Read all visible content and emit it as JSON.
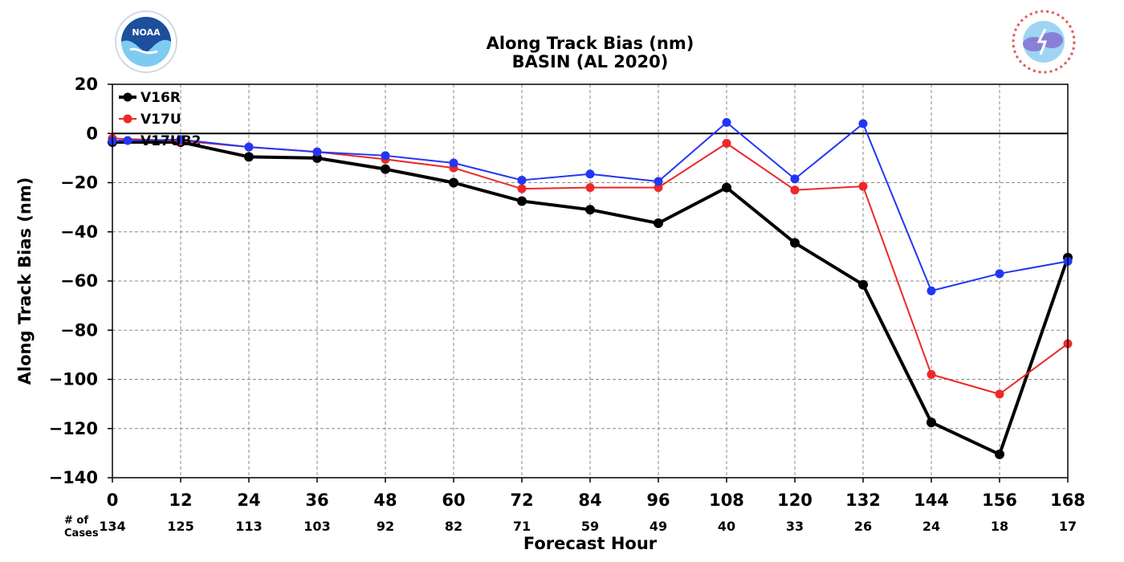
{
  "logos": {
    "left": {
      "icon": "noaa-logo-icon",
      "text": "NOAA",
      "colors": {
        "sky": "#7ecbf2",
        "dark": "#1d4f9c"
      }
    },
    "right": {
      "icon": "national-weather-service-logo-icon",
      "colors": {
        "ring": "#e05a5a",
        "cloud": "#8a7fd6",
        "sky": "#9fd4f2"
      }
    }
  },
  "cases_label": [
    "# of",
    "Cases"
  ],
  "cases": [
    "134",
    "125",
    "113",
    "103",
    "92",
    "82",
    "71",
    "59",
    "49",
    "40",
    "33",
    "26",
    "24",
    "18",
    "17"
  ],
  "chart_data": {
    "type": "line",
    "title": "Along Track Bias (nm)",
    "subtitle": "BASIN (AL 2020)",
    "xlabel": "Forecast Hour",
    "ylabel": "Along Track Bias (nm)",
    "x": [
      0,
      12,
      24,
      36,
      48,
      60,
      72,
      84,
      96,
      108,
      120,
      132,
      144,
      156,
      168
    ],
    "xlim": [
      0,
      168
    ],
    "ylim": [
      -140,
      20
    ],
    "xticks": [
      0,
      12,
      24,
      36,
      48,
      60,
      72,
      84,
      96,
      108,
      120,
      132,
      144,
      156,
      168
    ],
    "yticks": [
      20,
      0,
      -20,
      -40,
      -60,
      -80,
      -100,
      -120,
      -140
    ],
    "grid": true,
    "legend_position": "top-left",
    "series": [
      {
        "name": "V16R",
        "color": "#000000",
        "values": [
          -3.5,
          -3.5,
          -9.5,
          -10,
          -14.5,
          -20,
          -27.5,
          -31,
          -36.5,
          -22,
          -44.5,
          -61.5,
          -117.5,
          -130.5,
          -50.5
        ]
      },
      {
        "name": "V17U",
        "color": "#ee2828",
        "values": [
          -2,
          -3,
          -5.5,
          -7.5,
          -10.5,
          -14,
          -22.5,
          -22,
          -22,
          -4,
          -23,
          -21.5,
          -98,
          -106,
          -85.5
        ]
      },
      {
        "name": "V17UB2",
        "color": "#2236f5",
        "values": [
          -3,
          -2.5,
          -5.5,
          -7.5,
          -9,
          -12,
          -19,
          -16.5,
          -19.5,
          4.5,
          -18.5,
          4,
          -64,
          -57,
          -52
        ]
      }
    ]
  }
}
